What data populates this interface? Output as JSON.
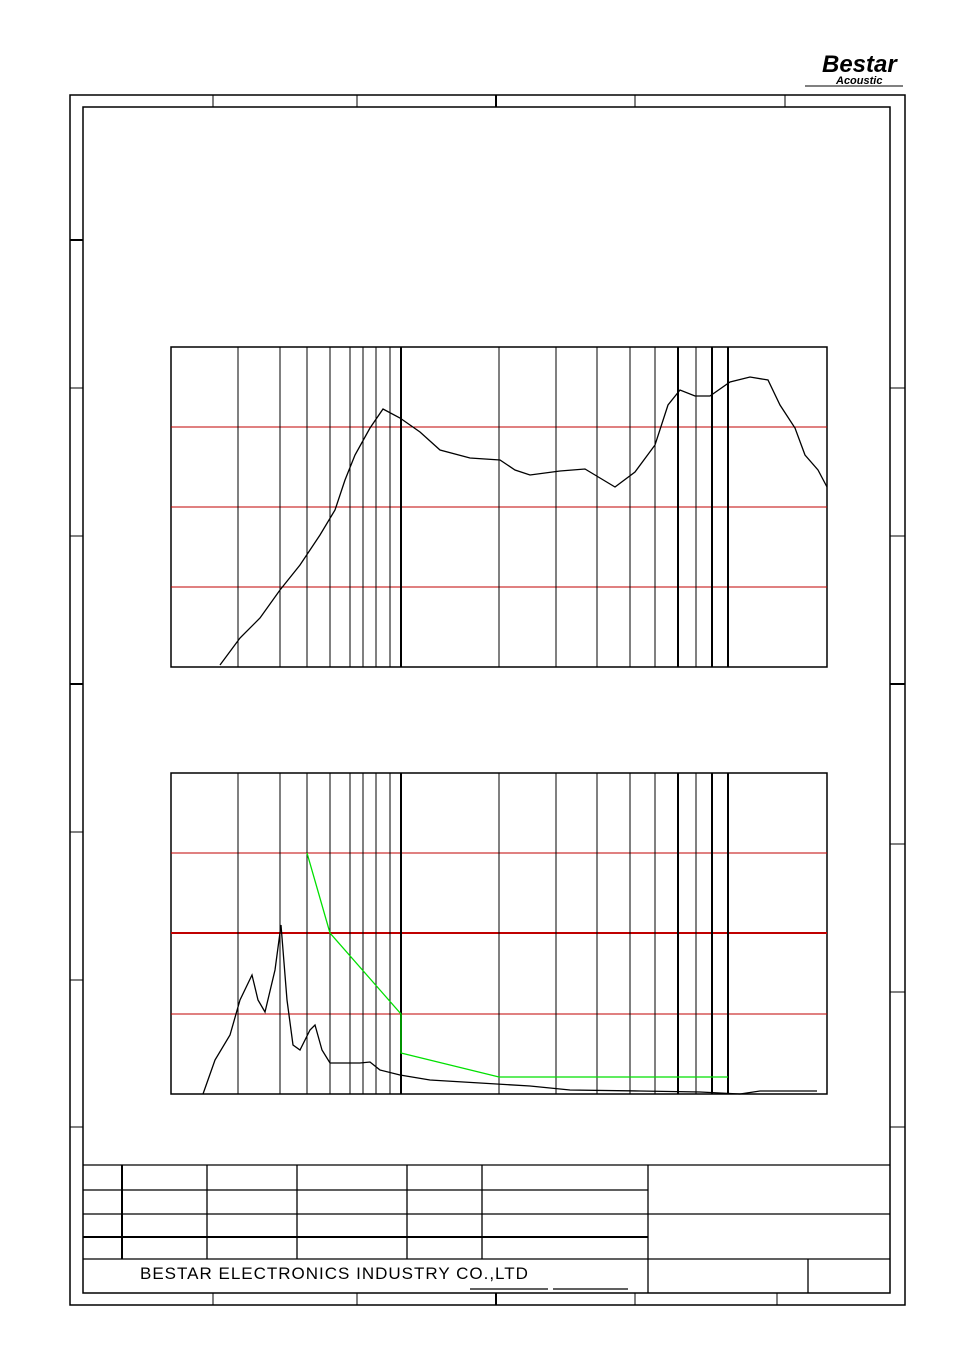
{
  "logo": {
    "brand": "Bestar",
    "sub": "Acoustic"
  },
  "footer": {
    "company": "BESTAR ELECTRONICS INDUSTRY CO.,LTD"
  }
}
